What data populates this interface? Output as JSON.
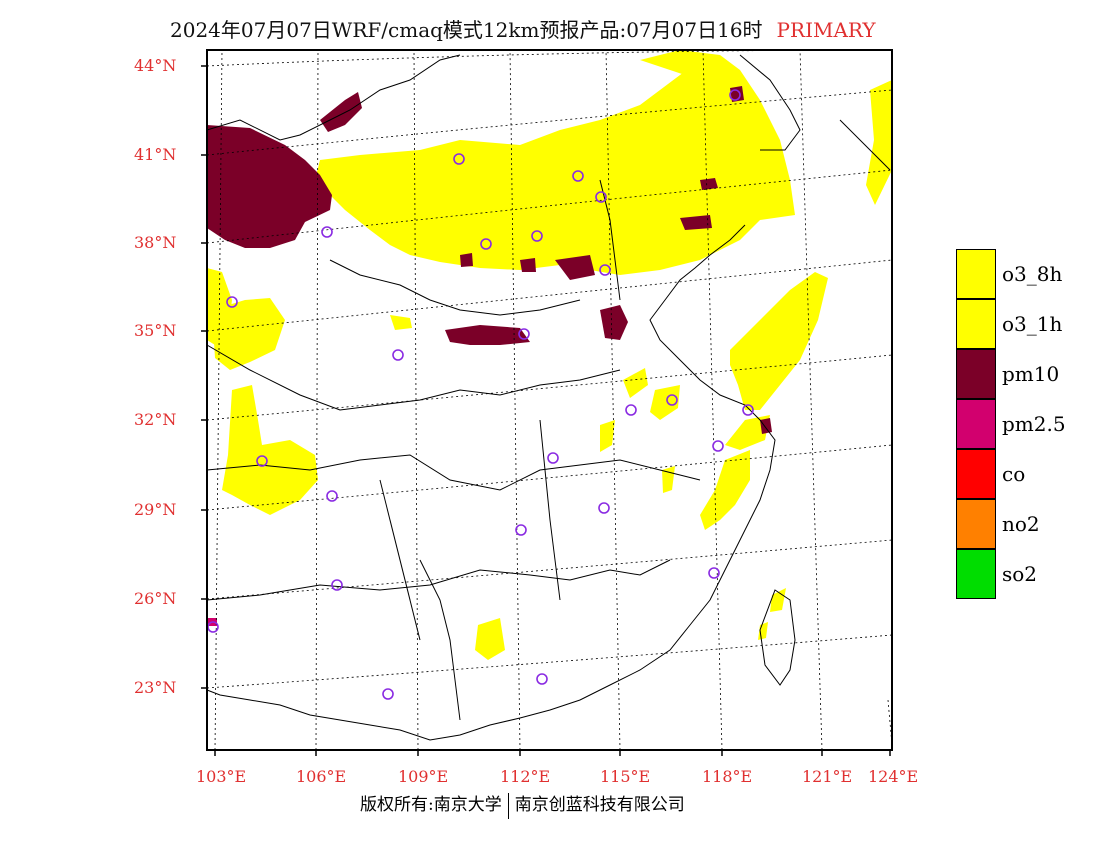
{
  "header": {
    "title": "2024年07月07日WRF/cmaq模式12km预报产品:07月07日16时",
    "mode_label": "PRIMARY"
  },
  "axes": {
    "lat_labels": [
      "44°N",
      "41°N",
      "38°N",
      "35°N",
      "32°N",
      "29°N",
      "26°N",
      "23°N"
    ],
    "lon_labels": [
      "103°E",
      "106°E",
      "109°E",
      "112°E",
      "115°E",
      "118°E",
      "121°E",
      "124°E"
    ]
  },
  "legend": {
    "items": [
      {
        "label": "o3_8h",
        "color": "#ffff00"
      },
      {
        "label": "o3_1h",
        "color": "#ffff00"
      },
      {
        "label": "pm10",
        "color": "#7b0028"
      },
      {
        "label": "pm2.5",
        "color": "#d2006e"
      },
      {
        "label": "co",
        "color": "#ff0000"
      },
      {
        "label": "no2",
        "color": "#ff8000"
      },
      {
        "label": "so2",
        "color": "#00dd00"
      }
    ]
  },
  "colors": {
    "accent_label": "#e03030",
    "ozone": "#ffff00",
    "pm10": "#7b0028",
    "station_marker": "#8a2be2"
  },
  "footer": {
    "left": "版权所有:南京大学",
    "right": "南京创蓝科技有限公司"
  }
}
